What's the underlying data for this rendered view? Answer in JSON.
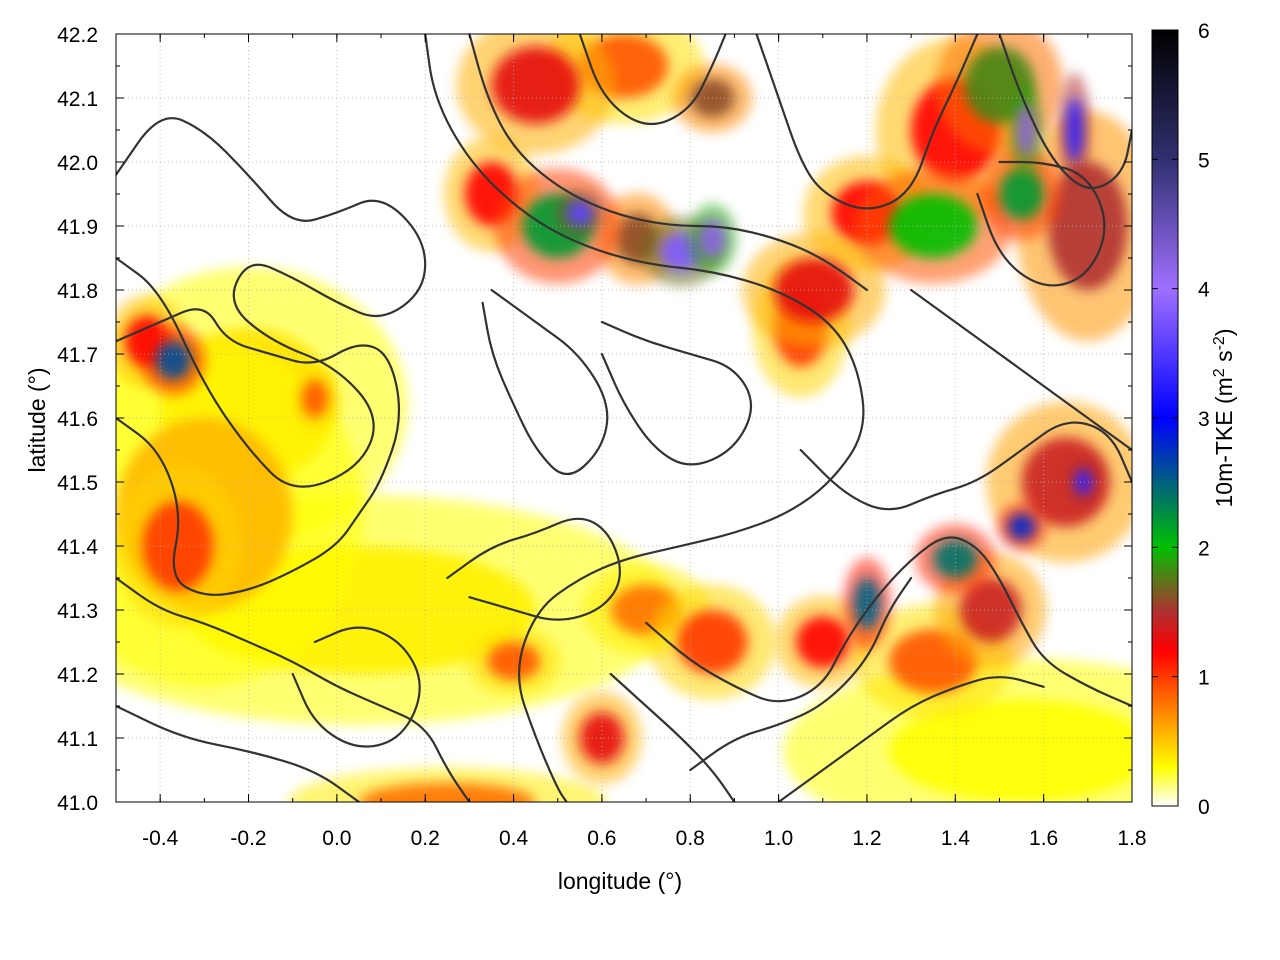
{
  "chart_data": {
    "type": "heatmap",
    "title": "",
    "xlabel": "longitude (°)",
    "ylabel": "latitude (°)",
    "colorbar_label": "10m-TKE (m² s⁻²)",
    "colorbar_label_parts": {
      "base": "10m-TKE (m",
      "sup1": "2",
      "mid": " s",
      "sup2": "-2",
      "end": ")"
    },
    "xlim": [
      -0.5,
      1.8
    ],
    "ylim": [
      41.0,
      42.2
    ],
    "clim": [
      0,
      6
    ],
    "x_ticks": [
      -0.4,
      -0.2,
      0.0,
      0.2,
      0.4,
      0.6,
      0.8,
      1.0,
      1.2,
      1.4,
      1.6,
      1.8
    ],
    "x_tick_labels": [
      "-0.4",
      "-0.2",
      "0.0",
      "0.2",
      "0.4",
      "0.6",
      "0.8",
      "1.0",
      "1.2",
      "1.4",
      "1.6",
      "1.8"
    ],
    "y_ticks": [
      41.0,
      41.1,
      41.2,
      41.3,
      41.4,
      41.5,
      41.6,
      41.7,
      41.8,
      41.9,
      42.0,
      42.1,
      42.2
    ],
    "y_tick_labels": [
      "41.0",
      "41.1",
      "41.2",
      "41.3",
      "41.4",
      "41.5",
      "41.6",
      "41.7",
      "41.8",
      "41.9",
      "42.0",
      "42.1",
      "42.2"
    ],
    "c_ticks": [
      0,
      1,
      2,
      3,
      4,
      5,
      6
    ],
    "c_tick_labels": [
      "0",
      "1",
      "2",
      "3",
      "4",
      "5",
      "6"
    ],
    "grid": true,
    "colormap": [
      {
        "value": 0.0,
        "color": "#ffffff"
      },
      {
        "value": 0.3,
        "color": "#ffff00"
      },
      {
        "value": 0.75,
        "color": "#ff8000"
      },
      {
        "value": 1.2,
        "color": "#ff0000"
      },
      {
        "value": 1.5,
        "color": "#b03030"
      },
      {
        "value": 2.0,
        "color": "#00c000"
      },
      {
        "value": 3.0,
        "color": "#0000ff"
      },
      {
        "value": 4.0,
        "color": "#a070ff"
      },
      {
        "value": 5.0,
        "color": "#303070"
      },
      {
        "value": 6.0,
        "color": "#000000"
      }
    ],
    "tke_hotspots": [
      {
        "lon": -0.37,
        "lat": 41.69,
        "tke": 2.6,
        "r_lon": 0.04,
        "r_lat": 0.03
      },
      {
        "lon": -0.43,
        "lat": 41.72,
        "tke": 1.2,
        "r_lon": 0.05,
        "r_lat": 0.04
      },
      {
        "lon": -0.36,
        "lat": 41.4,
        "tke": 1.0,
        "r_lon": 0.08,
        "r_lat": 0.07
      },
      {
        "lon": -0.3,
        "lat": 41.45,
        "tke": 0.55,
        "r_lon": 0.2,
        "r_lat": 0.15
      },
      {
        "lon": -0.2,
        "lat": 41.62,
        "tke": 0.4,
        "r_lon": 0.2,
        "r_lat": 0.12
      },
      {
        "lon": -0.05,
        "lat": 41.63,
        "tke": 0.9,
        "r_lon": 0.03,
        "r_lat": 0.03
      },
      {
        "lon": 0.05,
        "lat": 41.3,
        "tke": 0.35,
        "r_lon": 0.4,
        "r_lat": 0.1
      },
      {
        "lon": 0.35,
        "lat": 41.95,
        "tke": 1.2,
        "r_lon": 0.06,
        "r_lat": 0.05
      },
      {
        "lon": 0.5,
        "lat": 41.9,
        "tke": 2.2,
        "r_lon": 0.08,
        "r_lat": 0.05
      },
      {
        "lon": 0.55,
        "lat": 41.92,
        "tke": 3.6,
        "r_lon": 0.03,
        "r_lat": 0.02
      },
      {
        "lon": 0.68,
        "lat": 41.88,
        "tke": 1.6,
        "r_lon": 0.05,
        "r_lat": 0.04
      },
      {
        "lon": 0.78,
        "lat": 41.86,
        "tke": 3.8,
        "r_lon": 0.05,
        "r_lat": 0.03
      },
      {
        "lon": 0.85,
        "lat": 41.88,
        "tke": 4.2,
        "r_lon": 0.03,
        "r_lat": 0.03
      },
      {
        "lon": 0.45,
        "lat": 42.12,
        "tke": 1.3,
        "r_lon": 0.1,
        "r_lat": 0.06
      },
      {
        "lon": 0.65,
        "lat": 42.15,
        "tke": 0.9,
        "r_lon": 0.1,
        "r_lat": 0.05
      },
      {
        "lon": 0.85,
        "lat": 42.1,
        "tke": 1.6,
        "r_lon": 0.05,
        "r_lat": 0.03
      },
      {
        "lon": 1.08,
        "lat": 41.8,
        "tke": 1.3,
        "r_lon": 0.09,
        "r_lat": 0.05
      },
      {
        "lon": 1.05,
        "lat": 41.74,
        "tke": 1.0,
        "r_lon": 0.06,
        "r_lat": 0.06
      },
      {
        "lon": 1.2,
        "lat": 41.92,
        "tke": 1.2,
        "r_lon": 0.08,
        "r_lat": 0.05
      },
      {
        "lon": 1.35,
        "lat": 41.9,
        "tke": 2.0,
        "r_lon": 0.1,
        "r_lat": 0.05
      },
      {
        "lon": 1.4,
        "lat": 42.05,
        "tke": 1.2,
        "r_lon": 0.1,
        "r_lat": 0.08
      },
      {
        "lon": 1.5,
        "lat": 42.12,
        "tke": 1.8,
        "r_lon": 0.08,
        "r_lat": 0.06
      },
      {
        "lon": 1.56,
        "lat": 42.05,
        "tke": 4.2,
        "r_lon": 0.02,
        "r_lat": 0.04
      },
      {
        "lon": 1.67,
        "lat": 42.05,
        "tke": 3.3,
        "r_lon": 0.02,
        "r_lat": 0.05
      },
      {
        "lon": 1.7,
        "lat": 41.9,
        "tke": 1.5,
        "r_lon": 0.09,
        "r_lat": 0.1
      },
      {
        "lon": 1.55,
        "lat": 41.95,
        "tke": 2.2,
        "r_lon": 0.05,
        "r_lat": 0.04
      },
      {
        "lon": 1.65,
        "lat": 41.5,
        "tke": 1.4,
        "r_lon": 0.1,
        "r_lat": 0.07
      },
      {
        "lon": 1.69,
        "lat": 41.5,
        "tke": 3.3,
        "r_lon": 0.02,
        "r_lat": 0.02
      },
      {
        "lon": 1.55,
        "lat": 41.43,
        "tke": 2.8,
        "r_lon": 0.03,
        "r_lat": 0.02
      },
      {
        "lon": 1.4,
        "lat": 41.38,
        "tke": 2.4,
        "r_lon": 0.05,
        "r_lat": 0.03
      },
      {
        "lon": 1.48,
        "lat": 41.3,
        "tke": 1.4,
        "r_lon": 0.07,
        "r_lat": 0.05
      },
      {
        "lon": 1.2,
        "lat": 41.31,
        "tke": 2.5,
        "r_lon": 0.03,
        "r_lat": 0.04
      },
      {
        "lon": 1.1,
        "lat": 41.25,
        "tke": 1.2,
        "r_lon": 0.06,
        "r_lat": 0.04
      },
      {
        "lon": 1.35,
        "lat": 41.22,
        "tke": 0.9,
        "r_lon": 0.1,
        "r_lat": 0.05
      },
      {
        "lon": 0.6,
        "lat": 41.1,
        "tke": 1.3,
        "r_lon": 0.05,
        "r_lat": 0.04
      },
      {
        "lon": 0.85,
        "lat": 41.25,
        "tke": 1.0,
        "r_lon": 0.08,
        "r_lat": 0.05
      },
      {
        "lon": 0.7,
        "lat": 41.3,
        "tke": 0.8,
        "r_lon": 0.08,
        "r_lat": 0.04
      },
      {
        "lon": 1.55,
        "lat": 41.08,
        "tke": 0.3,
        "r_lon": 0.3,
        "r_lat": 0.08
      },
      {
        "lon": 0.4,
        "lat": 41.22,
        "tke": 0.9,
        "r_lon": 0.06,
        "r_lat": 0.03
      },
      {
        "lon": 0.25,
        "lat": 41.0,
        "tke": 0.8,
        "r_lon": 0.2,
        "r_lat": 0.03
      }
    ],
    "contours": [
      [
        [
          -0.5,
          41.98
        ],
        [
          -0.4,
          42.08
        ],
        [
          -0.3,
          42.05
        ],
        [
          -0.2,
          41.98
        ],
        [
          -0.1,
          41.9
        ],
        [
          0.0,
          41.92
        ],
        [
          0.1,
          41.95
        ],
        [
          0.2,
          41.88
        ],
        [
          0.2,
          41.8
        ],
        [
          0.1,
          41.75
        ],
        [
          0.0,
          41.78
        ],
        [
          -0.1,
          41.82
        ],
        [
          -0.2,
          41.85
        ],
        [
          -0.25,
          41.78
        ],
        [
          -0.15,
          41.72
        ],
        [
          0.0,
          41.68
        ],
        [
          0.1,
          41.6
        ],
        [
          0.05,
          41.52
        ],
        [
          -0.1,
          41.48
        ],
        [
          -0.2,
          41.55
        ],
        [
          -0.3,
          41.65
        ],
        [
          -0.4,
          41.8
        ],
        [
          -0.5,
          41.85
        ]
      ],
      [
        [
          -0.5,
          41.6
        ],
        [
          -0.4,
          41.55
        ],
        [
          -0.35,
          41.45
        ],
        [
          -0.38,
          41.35
        ],
        [
          -0.3,
          41.32
        ],
        [
          -0.2,
          41.33
        ],
        [
          -0.1,
          41.36
        ],
        [
          0.0,
          41.4
        ],
        [
          0.05,
          41.45
        ],
        [
          0.1,
          41.5
        ],
        [
          0.15,
          41.6
        ],
        [
          0.12,
          41.7
        ],
        [
          0.05,
          41.72
        ],
        [
          -0.05,
          41.68
        ],
        [
          -0.15,
          41.7
        ],
        [
          -0.25,
          41.72
        ],
        [
          -0.3,
          41.78
        ],
        [
          -0.4,
          41.75
        ],
        [
          -0.5,
          41.72
        ]
      ],
      [
        [
          -0.5,
          41.35
        ],
        [
          -0.4,
          41.3
        ],
        [
          -0.3,
          41.28
        ],
        [
          -0.2,
          41.25
        ],
        [
          -0.1,
          41.22
        ],
        [
          0.0,
          41.18
        ],
        [
          0.1,
          41.15
        ],
        [
          0.2,
          41.12
        ],
        [
          0.25,
          41.05
        ],
        [
          0.3,
          41.0
        ]
      ],
      [
        [
          -0.5,
          41.15
        ],
        [
          -0.35,
          41.1
        ],
        [
          -0.2,
          41.08
        ],
        [
          -0.05,
          41.05
        ],
        [
          0.05,
          41.0
        ]
      ],
      [
        [
          0.2,
          42.2
        ],
        [
          0.22,
          42.1
        ],
        [
          0.3,
          42.0
        ],
        [
          0.42,
          41.92
        ],
        [
          0.55,
          41.87
        ],
        [
          0.7,
          41.84
        ],
        [
          0.85,
          41.83
        ],
        [
          1.0,
          41.8
        ],
        [
          1.12,
          41.75
        ],
        [
          1.18,
          41.68
        ],
        [
          1.2,
          41.58
        ],
        [
          1.12,
          41.5
        ],
        [
          1.02,
          41.45
        ],
        [
          0.9,
          41.42
        ],
        [
          0.78,
          41.4
        ],
        [
          0.65,
          41.38
        ],
        [
          0.55,
          41.35
        ],
        [
          0.45,
          41.3
        ],
        [
          0.4,
          41.2
        ],
        [
          0.45,
          41.1
        ],
        [
          0.5,
          41.02
        ],
        [
          0.52,
          41.0
        ]
      ],
      [
        [
          0.3,
          42.2
        ],
        [
          0.34,
          42.1
        ],
        [
          0.4,
          42.02
        ],
        [
          0.5,
          41.96
        ],
        [
          0.62,
          41.92
        ],
        [
          0.75,
          41.9
        ],
        [
          0.88,
          41.9
        ],
        [
          1.0,
          41.88
        ],
        [
          1.1,
          41.85
        ],
        [
          1.2,
          41.8
        ]
      ],
      [
        [
          0.55,
          42.2
        ],
        [
          0.6,
          42.1
        ],
        [
          0.7,
          42.05
        ],
        [
          0.8,
          42.08
        ],
        [
          0.85,
          42.15
        ],
        [
          0.88,
          42.2
        ]
      ],
      [
        [
          0.95,
          42.2
        ],
        [
          1.0,
          42.1
        ],
        [
          1.05,
          42.0
        ],
        [
          1.1,
          41.95
        ],
        [
          1.2,
          41.92
        ],
        [
          1.3,
          41.95
        ],
        [
          1.35,
          42.05
        ],
        [
          1.4,
          42.12
        ],
        [
          1.45,
          42.2
        ]
      ],
      [
        [
          1.3,
          41.8
        ],
        [
          1.4,
          41.75
        ],
        [
          1.5,
          41.7
        ],
        [
          1.6,
          41.65
        ],
        [
          1.7,
          41.6
        ],
        [
          1.8,
          41.55
        ]
      ],
      [
        [
          1.5,
          42.2
        ],
        [
          1.55,
          42.1
        ],
        [
          1.62,
          42.0
        ],
        [
          1.7,
          41.95
        ],
        [
          1.78,
          41.98
        ],
        [
          1.8,
          42.05
        ]
      ],
      [
        [
          1.05,
          41.55
        ],
        [
          1.15,
          41.48
        ],
        [
          1.25,
          41.45
        ],
        [
          1.35,
          41.48
        ],
        [
          1.45,
          41.5
        ],
        [
          1.55,
          41.55
        ],
        [
          1.65,
          41.6
        ],
        [
          1.75,
          41.58
        ],
        [
          1.8,
          41.5
        ]
      ],
      [
        [
          0.62,
          41.2
        ],
        [
          0.7,
          41.15
        ],
        [
          0.78,
          41.1
        ],
        [
          0.85,
          41.05
        ],
        [
          0.9,
          41.0
        ]
      ],
      [
        [
          0.7,
          41.28
        ],
        [
          0.8,
          41.22
        ],
        [
          0.9,
          41.18
        ],
        [
          1.0,
          41.15
        ],
        [
          1.1,
          41.18
        ],
        [
          1.15,
          41.25
        ],
        [
          1.22,
          41.32
        ],
        [
          1.3,
          41.38
        ],
        [
          1.38,
          41.42
        ],
        [
          1.45,
          41.4
        ],
        [
          1.5,
          41.35
        ],
        [
          1.55,
          41.28
        ],
        [
          1.6,
          41.22
        ],
        [
          1.7,
          41.18
        ],
        [
          1.8,
          41.15
        ]
      ],
      [
        [
          0.8,
          41.05
        ],
        [
          0.9,
          41.1
        ],
        [
          1.0,
          41.12
        ],
        [
          1.1,
          41.15
        ],
        [
          1.2,
          41.22
        ],
        [
          1.25,
          41.3
        ],
        [
          1.3,
          41.35
        ]
      ],
      [
        [
          1.0,
          41.0
        ],
        [
          1.1,
          41.05
        ],
        [
          1.2,
          41.1
        ],
        [
          1.3,
          41.15
        ],
        [
          1.4,
          41.18
        ],
        [
          1.5,
          41.2
        ],
        [
          1.6,
          41.18
        ]
      ],
      [
        [
          0.35,
          41.8
        ],
        [
          0.45,
          41.75
        ],
        [
          0.55,
          41.7
        ],
        [
          0.62,
          41.62
        ],
        [
          0.6,
          41.55
        ],
        [
          0.52,
          41.5
        ],
        [
          0.45,
          41.55
        ],
        [
          0.4,
          41.62
        ],
        [
          0.35,
          41.7
        ],
        [
          0.33,
          41.78
        ]
      ],
      [
        [
          0.6,
          41.75
        ],
        [
          0.7,
          41.72
        ],
        [
          0.8,
          41.7
        ],
        [
          0.9,
          41.68
        ],
        [
          0.95,
          41.62
        ],
        [
          0.9,
          41.55
        ],
        [
          0.8,
          41.52
        ],
        [
          0.72,
          41.55
        ],
        [
          0.65,
          41.62
        ],
        [
          0.6,
          41.7
        ]
      ],
      [
        [
          0.25,
          41.35
        ],
        [
          0.35,
          41.4
        ],
        [
          0.45,
          41.42
        ],
        [
          0.55,
          41.45
        ],
        [
          0.62,
          41.42
        ],
        [
          0.65,
          41.35
        ],
        [
          0.6,
          41.3
        ],
        [
          0.5,
          41.28
        ],
        [
          0.4,
          41.3
        ],
        [
          0.3,
          41.32
        ]
      ],
      [
        [
          -0.05,
          41.25
        ],
        [
          0.05,
          41.28
        ],
        [
          0.15,
          41.25
        ],
        [
          0.2,
          41.18
        ],
        [
          0.15,
          41.1
        ],
        [
          0.05,
          41.08
        ],
        [
          -0.05,
          41.12
        ],
        [
          -0.1,
          41.2
        ]
      ],
      [
        [
          1.45,
          41.95
        ],
        [
          1.5,
          41.85
        ],
        [
          1.6,
          41.8
        ],
        [
          1.7,
          41.82
        ],
        [
          1.75,
          41.9
        ],
        [
          1.7,
          41.98
        ],
        [
          1.6,
          42.0
        ],
        [
          1.5,
          42.0
        ]
      ]
    ]
  }
}
